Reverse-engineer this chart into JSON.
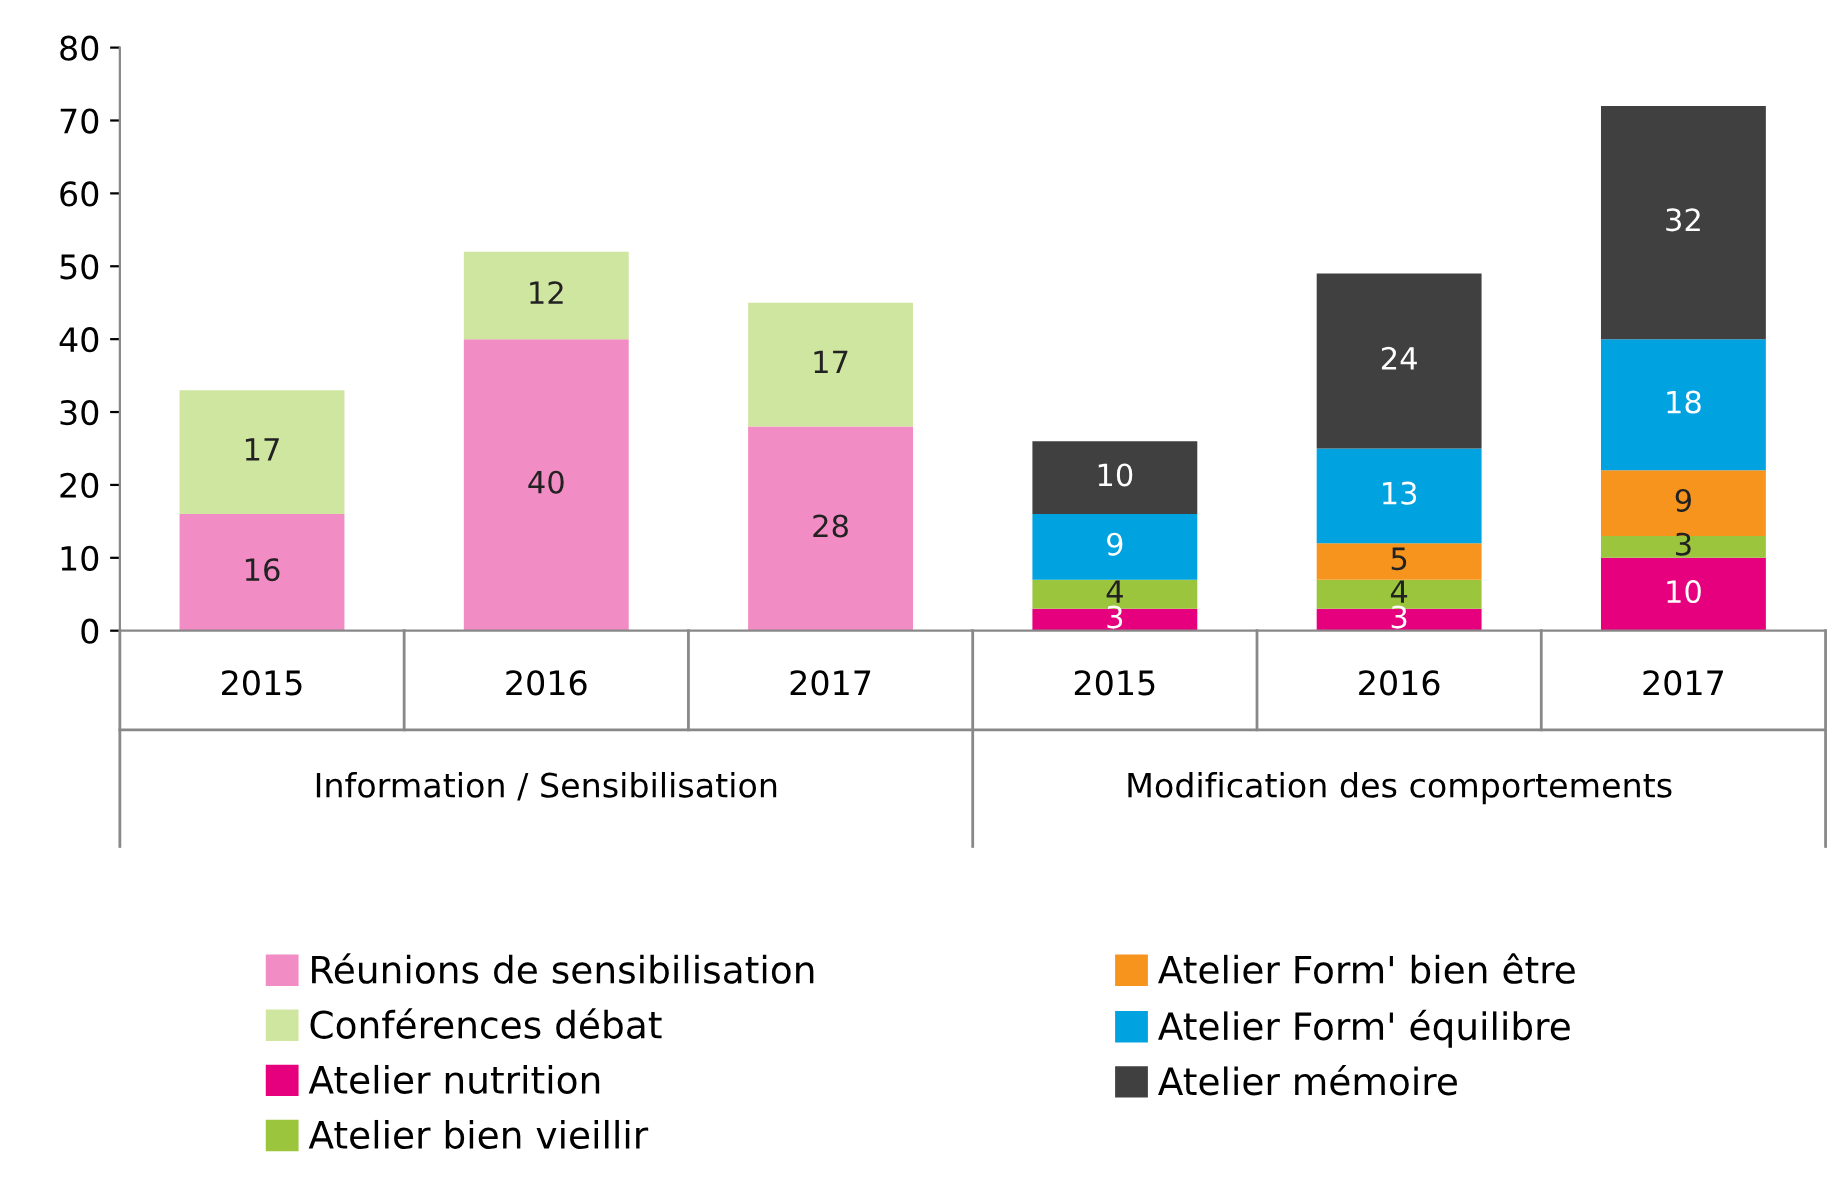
{
  "chart_data": {
    "type": "bar",
    "stacked": true,
    "data_labels": true,
    "grid": false,
    "legend": "bottom",
    "categories": [
      "2015",
      "2016",
      "2017",
      "2015",
      "2016",
      "2017"
    ],
    "annotations": [
      "Information / Sensibilisation",
      "Modification des comportements"
    ],
    "series": [
      {
        "name": "Réunions de sensibilisation",
        "color": "#f28cc4",
        "values": [
          16,
          40,
          28,
          null,
          null,
          null
        ]
      },
      {
        "name": "Conférences débat",
        "color": "#cfe6a0",
        "values": [
          17,
          12,
          17,
          null,
          null,
          null
        ]
      },
      {
        "name": "Atelier nutrition",
        "color": "#e6007e",
        "values": [
          null,
          null,
          null,
          3,
          3,
          10
        ]
      },
      {
        "name": "Atelier bien vieillir",
        "color": "#9bc53d",
        "values": [
          null,
          null,
          null,
          4,
          4,
          3
        ]
      },
      {
        "name": "Atelier Form' bien être",
        "color": "#f7941d",
        "values": [
          null,
          null,
          null,
          null,
          5,
          9
        ]
      },
      {
        "name": "Atelier Form' équilibre",
        "color": "#00a3e0",
        "values": [
          null,
          null,
          null,
          9,
          13,
          18
        ]
      },
      {
        "name": "Atelier mémoire",
        "color": "#404040",
        "values": [
          null,
          null,
          null,
          10,
          24,
          32
        ]
      }
    ],
    "ylim": [
      0,
      80
    ],
    "yticks": [
      0,
      10,
      20,
      30,
      40,
      50,
      60,
      70,
      80
    ]
  }
}
